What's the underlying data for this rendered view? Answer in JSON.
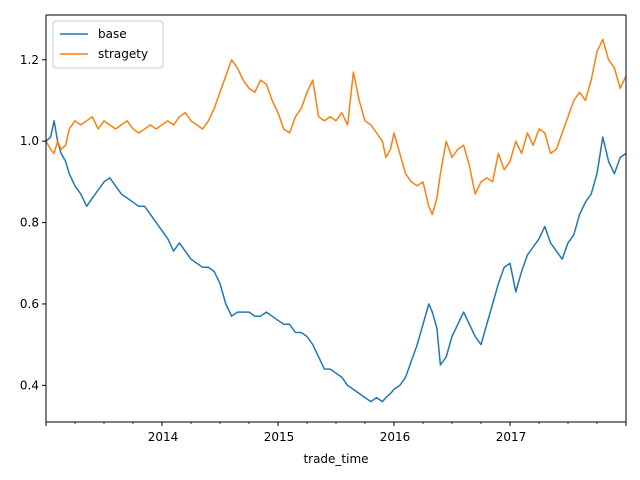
{
  "chart_data": {
    "type": "line",
    "title": "",
    "xlabel": "trade_time",
    "ylabel": "",
    "xlim": [
      2013.0,
      2018.0
    ],
    "ylim": [
      0.31,
      1.31
    ],
    "x_ticks": [
      2014,
      2015,
      2016,
      2017
    ],
    "x_tick_labels": [
      "2014",
      "2015",
      "2016",
      "2017"
    ],
    "y_ticks": [
      0.4,
      0.6,
      0.8,
      1.0,
      1.2
    ],
    "y_tick_labels": [
      "0.4",
      "0.6",
      "0.8",
      "1.0",
      "1.2"
    ],
    "legend_position": "top-left",
    "series": [
      {
        "name": "base",
        "color": "#1f77b4",
        "x": [
          2013.0,
          2013.04,
          2013.07,
          2013.1,
          2013.13,
          2013.17,
          2013.2,
          2013.25,
          2013.3,
          2013.35,
          2013.4,
          2013.45,
          2013.5,
          2013.55,
          2013.6,
          2013.65,
          2013.7,
          2013.75,
          2013.8,
          2013.85,
          2013.9,
          2013.95,
          2014.0,
          2014.05,
          2014.1,
          2014.15,
          2014.2,
          2014.25,
          2014.3,
          2014.35,
          2014.4,
          2014.45,
          2014.5,
          2014.55,
          2014.6,
          2014.65,
          2014.7,
          2014.75,
          2014.8,
          2014.85,
          2014.9,
          2014.95,
          2015.0,
          2015.05,
          2015.1,
          2015.15,
          2015.2,
          2015.25,
          2015.3,
          2015.35,
          2015.4,
          2015.45,
          2015.5,
          2015.55,
          2015.6,
          2015.65,
          2015.7,
          2015.75,
          2015.8,
          2015.85,
          2015.9,
          2015.93,
          2015.97,
          2016.0,
          2016.05,
          2016.1,
          2016.15,
          2016.2,
          2016.25,
          2016.3,
          2016.33,
          2016.37,
          2016.4,
          2016.45,
          2016.5,
          2016.55,
          2016.6,
          2016.65,
          2016.7,
          2016.75,
          2016.8,
          2016.85,
          2016.9,
          2016.95,
          2017.0,
          2017.05,
          2017.1,
          2017.15,
          2017.2,
          2017.25,
          2017.3,
          2017.35,
          2017.4,
          2017.45,
          2017.5,
          2017.55,
          2017.6,
          2017.65,
          2017.7,
          2017.75,
          2017.8,
          2017.85,
          2017.9,
          2017.95,
          2018.0
        ],
        "values": [
          1.0,
          1.01,
          1.05,
          1.0,
          0.97,
          0.95,
          0.92,
          0.89,
          0.87,
          0.84,
          0.86,
          0.88,
          0.9,
          0.91,
          0.89,
          0.87,
          0.86,
          0.85,
          0.84,
          0.84,
          0.82,
          0.8,
          0.78,
          0.76,
          0.73,
          0.75,
          0.73,
          0.71,
          0.7,
          0.69,
          0.69,
          0.68,
          0.65,
          0.6,
          0.57,
          0.58,
          0.58,
          0.58,
          0.57,
          0.57,
          0.58,
          0.57,
          0.56,
          0.55,
          0.55,
          0.53,
          0.53,
          0.52,
          0.5,
          0.47,
          0.44,
          0.44,
          0.43,
          0.42,
          0.4,
          0.39,
          0.38,
          0.37,
          0.36,
          0.37,
          0.36,
          0.37,
          0.38,
          0.39,
          0.4,
          0.42,
          0.46,
          0.5,
          0.55,
          0.6,
          0.58,
          0.54,
          0.45,
          0.47,
          0.52,
          0.55,
          0.58,
          0.55,
          0.52,
          0.5,
          0.55,
          0.6,
          0.65,
          0.69,
          0.7,
          0.63,
          0.68,
          0.72,
          0.74,
          0.76,
          0.79,
          0.75,
          0.73,
          0.71,
          0.75,
          0.77,
          0.82,
          0.85,
          0.87,
          0.92,
          1.01,
          0.95,
          0.92,
          0.96,
          0.97
        ]
      },
      {
        "name": "stragety",
        "color": "#ff7f0e",
        "x": [
          2013.0,
          2013.04,
          2013.07,
          2013.1,
          2013.13,
          2013.17,
          2013.2,
          2013.25,
          2013.3,
          2013.35,
          2013.4,
          2013.45,
          2013.5,
          2013.55,
          2013.6,
          2013.65,
          2013.7,
          2013.75,
          2013.8,
          2013.85,
          2013.9,
          2013.95,
          2014.0,
          2014.05,
          2014.1,
          2014.15,
          2014.2,
          2014.25,
          2014.3,
          2014.35,
          2014.4,
          2014.45,
          2014.5,
          2014.55,
          2014.6,
          2014.65,
          2014.7,
          2014.75,
          2014.8,
          2014.85,
          2014.9,
          2014.95,
          2015.0,
          2015.05,
          2015.1,
          2015.15,
          2015.2,
          2015.25,
          2015.3,
          2015.35,
          2015.4,
          2015.45,
          2015.5,
          2015.55,
          2015.6,
          2015.65,
          2015.7,
          2015.75,
          2015.8,
          2015.85,
          2015.9,
          2015.93,
          2015.97,
          2016.0,
          2016.05,
          2016.1,
          2016.15,
          2016.2,
          2016.25,
          2016.3,
          2016.33,
          2016.37,
          2016.4,
          2016.45,
          2016.5,
          2016.55,
          2016.6,
          2016.65,
          2016.7,
          2016.75,
          2016.8,
          2016.85,
          2016.9,
          2016.95,
          2017.0,
          2017.05,
          2017.1,
          2017.15,
          2017.2,
          2017.25,
          2017.3,
          2017.35,
          2017.4,
          2017.45,
          2017.5,
          2017.55,
          2017.6,
          2017.65,
          2017.7,
          2017.75,
          2017.8,
          2017.85,
          2017.9,
          2017.95,
          2018.0
        ],
        "values": [
          1.0,
          0.98,
          0.97,
          1.0,
          0.98,
          0.99,
          1.03,
          1.05,
          1.04,
          1.05,
          1.06,
          1.03,
          1.05,
          1.04,
          1.03,
          1.04,
          1.05,
          1.03,
          1.02,
          1.03,
          1.04,
          1.03,
          1.04,
          1.05,
          1.04,
          1.06,
          1.07,
          1.05,
          1.04,
          1.03,
          1.05,
          1.08,
          1.12,
          1.16,
          1.2,
          1.18,
          1.15,
          1.13,
          1.12,
          1.15,
          1.14,
          1.1,
          1.07,
          1.03,
          1.02,
          1.06,
          1.08,
          1.12,
          1.15,
          1.06,
          1.05,
          1.06,
          1.05,
          1.07,
          1.04,
          1.17,
          1.1,
          1.05,
          1.04,
          1.02,
          1.0,
          0.96,
          0.98,
          1.02,
          0.97,
          0.92,
          0.9,
          0.89,
          0.9,
          0.84,
          0.82,
          0.86,
          0.92,
          1.0,
          0.96,
          0.98,
          0.99,
          0.94,
          0.87,
          0.9,
          0.91,
          0.9,
          0.97,
          0.93,
          0.95,
          1.0,
          0.97,
          1.02,
          0.99,
          1.03,
          1.02,
          0.97,
          0.98,
          1.02,
          1.06,
          1.1,
          1.12,
          1.1,
          1.15,
          1.22,
          1.25,
          1.2,
          1.18,
          1.13,
          1.16
        ]
      }
    ]
  }
}
